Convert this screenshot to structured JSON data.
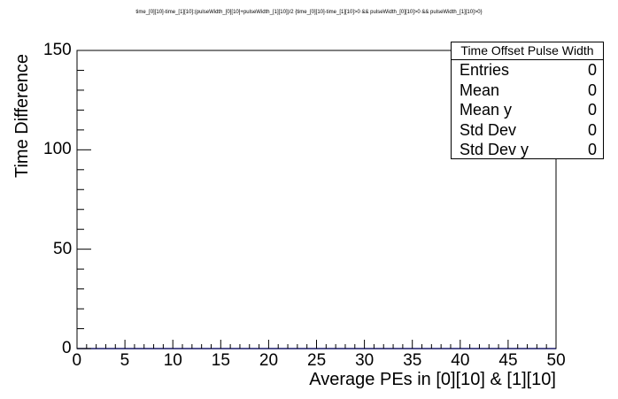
{
  "canvas": {
    "top_title": "time_[0][10]-time_[1][10]:(pulseWidth_[0][10]+pulseWidth_[1][10])/2  {time_[0][10]-time_[1][10]>0 && pulseWidth_[0][10]>0 && pulseWidth_[1][10]>0}"
  },
  "chart_data": {
    "type": "scatter",
    "title": "time_[0][10]-time_[1][10]:(pulseWidth_[0][10]+pulseWidth_[1][10])/2  {time_[0][10]-time_[1][10]>0 && pulseWidth_[0][10]>0 && pulseWidth_[1][10]>0}",
    "xlabel": "Average PEs in [0][10] & [1][10]",
    "ylabel": "Time Difference",
    "xlim": [
      0,
      50
    ],
    "ylim": [
      0,
      150
    ],
    "x_ticks": [
      "0",
      "5",
      "10",
      "15",
      "20",
      "25",
      "30",
      "35",
      "40",
      "45",
      "50"
    ],
    "y_ticks": [
      "0",
      "50",
      "100",
      "150"
    ],
    "x_tick_values": [
      0,
      5,
      10,
      15,
      20,
      25,
      30,
      35,
      40,
      45,
      50
    ],
    "y_tick_values": [
      0,
      50,
      100,
      150
    ],
    "grid": false,
    "points": [],
    "stats": {
      "title": "Time Offset Pulse Width",
      "rows": [
        {
          "label": "Entries",
          "value": "0"
        },
        {
          "label": "Mean",
          "value": "0"
        },
        {
          "label": "Mean y",
          "value": "0"
        },
        {
          "label": "Std Dev",
          "value": "0"
        },
        {
          "label": "Std Dev y",
          "value": "0"
        }
      ]
    }
  }
}
